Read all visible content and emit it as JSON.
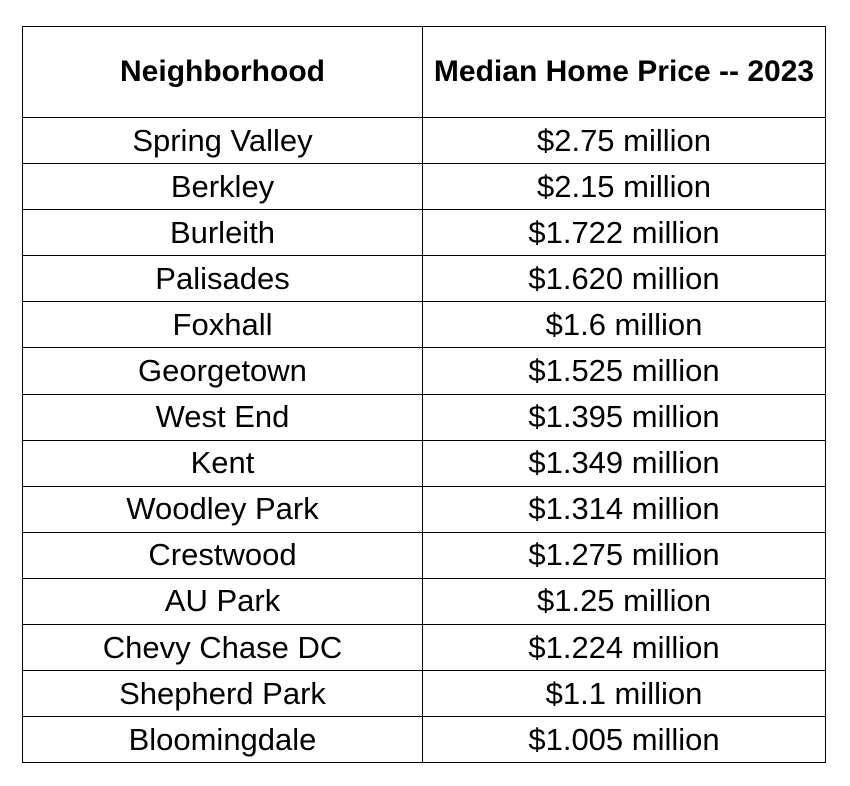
{
  "table": {
    "headers": [
      "Neighborhood",
      "Median Home Price -- 2023"
    ],
    "rows": [
      [
        "Spring Valley",
        "$2.75 million"
      ],
      [
        "Berkley",
        "$2.15 million"
      ],
      [
        "Burleith",
        "$1.722 million"
      ],
      [
        "Palisades",
        "$1.620 million"
      ],
      [
        "Foxhall",
        "$1.6 million"
      ],
      [
        "Georgetown",
        "$1.525 million"
      ],
      [
        "West End",
        "$1.395 million"
      ],
      [
        "Kent",
        "$1.349 million"
      ],
      [
        "Woodley Park",
        "$1.314 million"
      ],
      [
        "Crestwood",
        "$1.275 million"
      ],
      [
        "AU Park",
        "$1.25 million"
      ],
      [
        "Chevy Chase DC",
        "$1.224 million"
      ],
      [
        "Shepherd Park",
        "$1.1 million"
      ],
      [
        "Bloomingdale",
        "$1.005 million"
      ]
    ]
  }
}
